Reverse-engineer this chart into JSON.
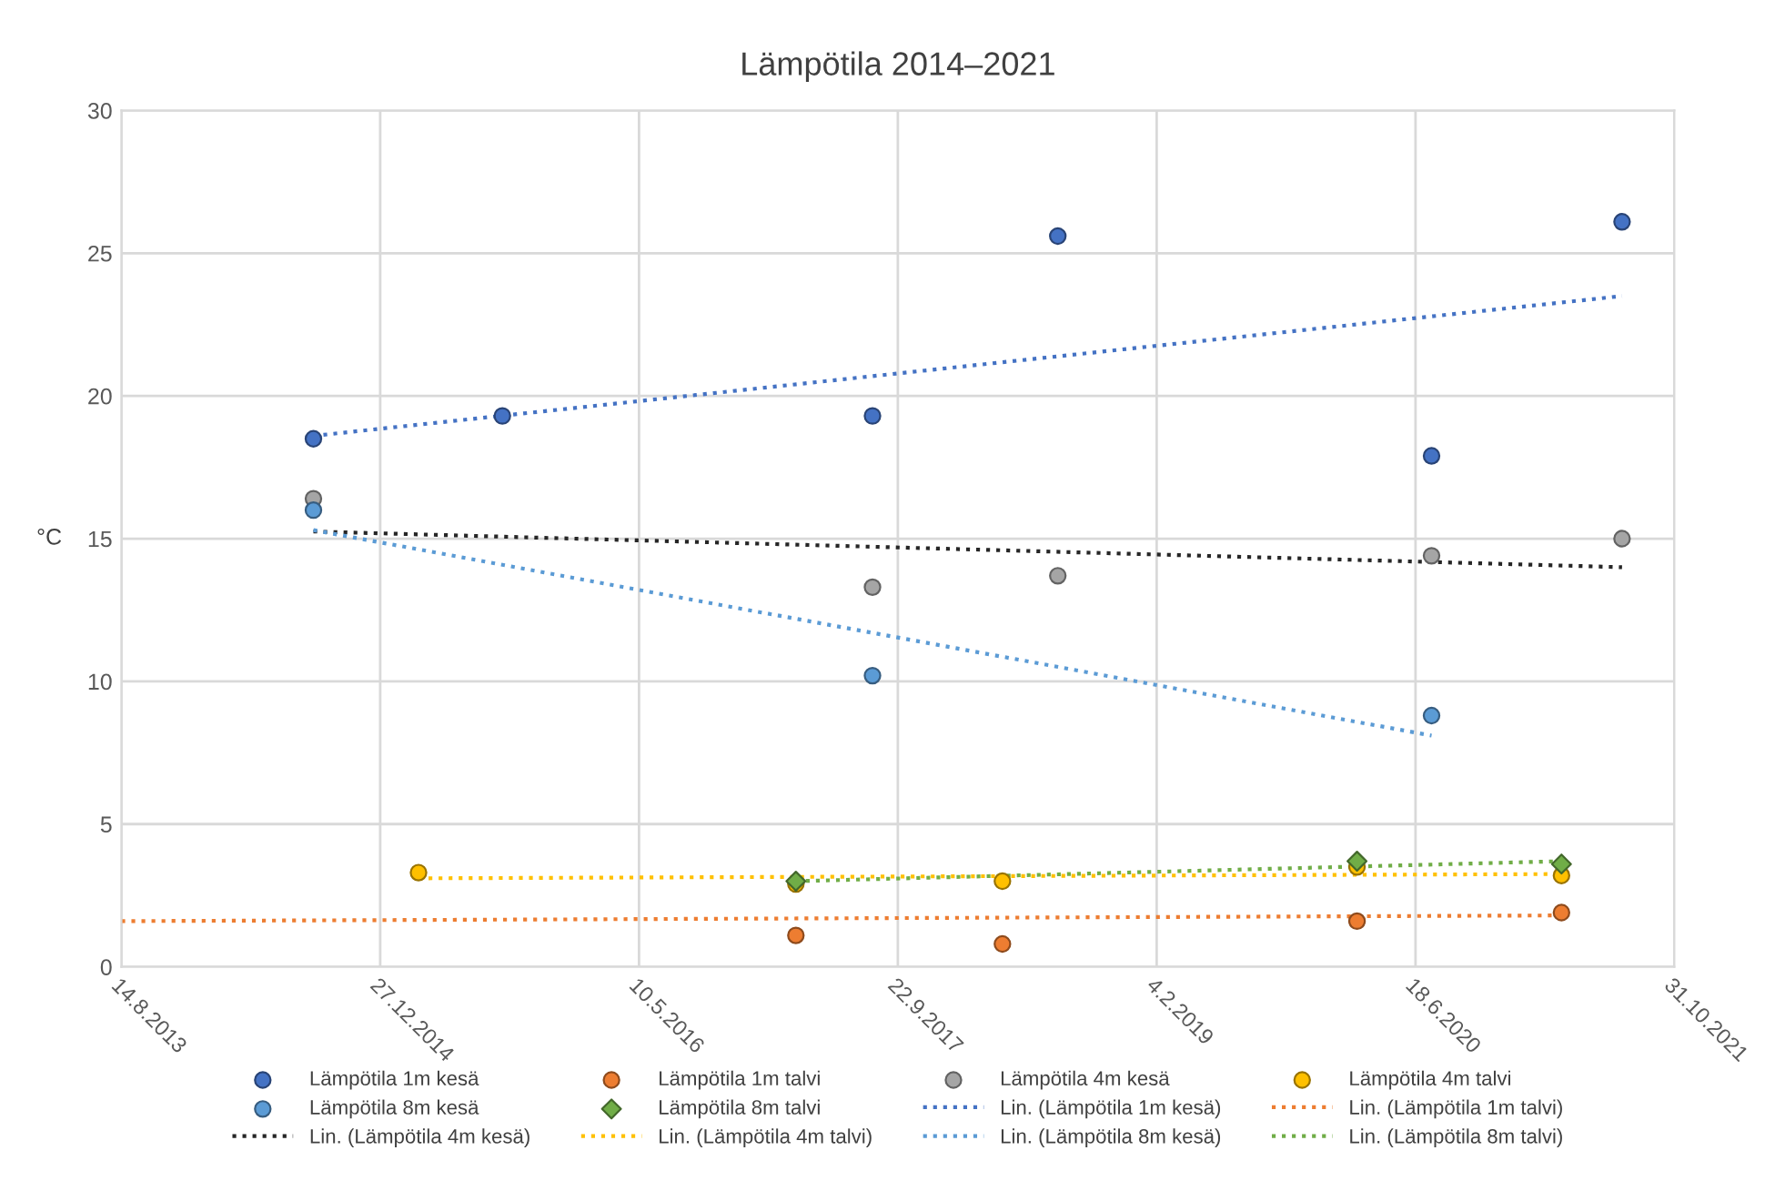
{
  "chart_data": {
    "type": "scatter",
    "title": "Lämpötila 2014–2021",
    "ylabel": "°C",
    "xlim": [
      "2013-08-14",
      "2021-10-31"
    ],
    "xticks": [
      {
        "value": "2013-08-14",
        "label": "14.8.2013"
      },
      {
        "value": "2014-12-27",
        "label": "27.12.2014"
      },
      {
        "value": "2016-05-10",
        "label": "10.5.2016"
      },
      {
        "value": "2017-09-22",
        "label": "22.9.2017"
      },
      {
        "value": "2019-02-04",
        "label": "4.2.2019"
      },
      {
        "value": "2020-06-18",
        "label": "18.6.2020"
      },
      {
        "value": "2021-10-31",
        "label": "31.10.2021"
      }
    ],
    "ylim": [
      0,
      30
    ],
    "yticks": [
      0,
      5,
      10,
      15,
      20,
      25,
      30
    ],
    "grid": true,
    "legend": "bottom",
    "series": [
      {
        "name": "Lämpötila 1m kesä",
        "color": "#4472c4",
        "marker": "circle",
        "x": [
          "2014-08-20",
          "2015-08-20",
          "2017-08-04",
          "2018-07-28",
          "2020-07-19",
          "2021-07-22"
        ],
        "values": [
          18.5,
          19.3,
          19.3,
          25.6,
          17.9,
          26.1
        ]
      },
      {
        "name": "Lämpötila 1m talvi",
        "color": "#ed7d31",
        "marker": "circle",
        "x": [
          "2017-03-09",
          "2018-04-12",
          "2020-02-26",
          "2021-03-27"
        ],
        "values": [
          1.1,
          0.8,
          1.6,
          1.9
        ]
      },
      {
        "name": "Lämpötila 4m kesä",
        "color": "#a5a5a5",
        "marker": "circle",
        "x": [
          "2014-08-20",
          "2017-08-04",
          "2018-07-28",
          "2020-07-19",
          "2021-07-22"
        ],
        "values": [
          16.4,
          13.3,
          13.7,
          14.4,
          15.0
        ]
      },
      {
        "name": "Lämpötila 4m talvi",
        "color": "#ffc000",
        "marker": "circle",
        "x": [
          "2015-03-11",
          "2017-03-09",
          "2018-04-12",
          "2020-02-26",
          "2021-03-27"
        ],
        "values": [
          3.3,
          2.9,
          3.0,
          3.5,
          3.2
        ]
      },
      {
        "name": "Lämpötila 8m kesä",
        "color": "#5b9bd5",
        "marker": "circle",
        "x": [
          "2014-08-20",
          "2017-08-04",
          "2020-07-19"
        ],
        "values": [
          16.0,
          10.2,
          8.8
        ]
      },
      {
        "name": "Lämpötila 8m talvi",
        "color": "#70ad47",
        "marker": "diamond",
        "x": [
          "2017-03-09",
          "2020-02-26",
          "2021-03-27"
        ],
        "values": [
          3.0,
          3.7,
          3.6
        ]
      },
      {
        "name": "Lin. (Lämpötila 1m kesä)",
        "type": "line",
        "line_style": "dotted",
        "color": "#4472c4",
        "x": [
          "2014-08-20",
          "2021-07-22"
        ],
        "values": [
          18.6,
          23.5
        ]
      },
      {
        "name": "Lin. (Lämpötila 1m talvi)",
        "type": "line",
        "line_style": "dotted",
        "color": "#ed7d31",
        "x": [
          "2013-08-14",
          "2021-03-27"
        ],
        "values": [
          1.6,
          1.8
        ]
      },
      {
        "name": "Lin. (Lämpötila 4m kesä)",
        "type": "line",
        "line_style": "dotted",
        "color": "#262626",
        "x": [
          "2014-08-20",
          "2021-07-22"
        ],
        "values": [
          15.25,
          14.0
        ]
      },
      {
        "name": "Lin. (Lämpötila 4m talvi)",
        "type": "line",
        "line_style": "dotted",
        "color": "#ffc000",
        "x": [
          "2015-03-11",
          "2021-03-27"
        ],
        "values": [
          3.1,
          3.25
        ]
      },
      {
        "name": "Lin. (Lämpötila 8m kesä)",
        "type": "line",
        "line_style": "dotted",
        "color": "#5b9bd5",
        "x": [
          "2014-08-20",
          "2020-07-19"
        ],
        "values": [
          15.3,
          8.1
        ]
      },
      {
        "name": "Lin. (Lämpötila 8m talvi)",
        "type": "line",
        "line_style": "dotted",
        "color": "#70ad47",
        "x": [
          "2017-03-09",
          "2021-03-27"
        ],
        "values": [
          3.0,
          3.7
        ]
      }
    ]
  }
}
